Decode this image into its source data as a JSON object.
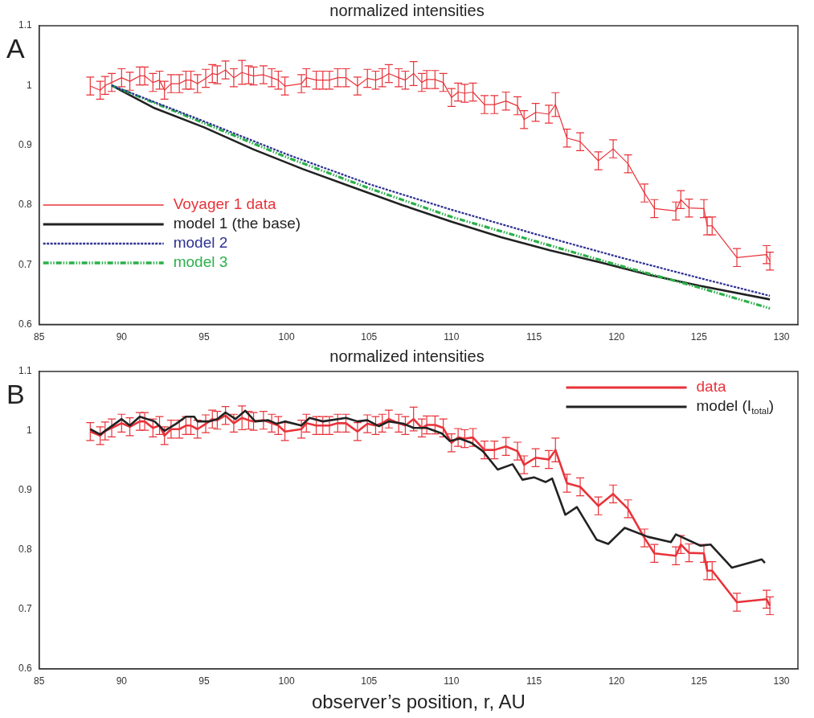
{
  "chart_data": [
    {
      "type": "line",
      "title": "normalized intensities",
      "annotations": [
        "A"
      ],
      "legend": "left",
      "grid": false,
      "marker": "none",
      "xlim": [
        85,
        131
      ],
      "xticks": [
        85,
        90,
        95,
        100,
        105,
        110,
        115,
        120,
        125,
        130
      ],
      "ylim": [
        0.6,
        1.1
      ],
      "yticks": [
        0.6,
        0.7,
        0.8,
        0.9,
        1,
        1.1
      ],
      "series": [
        {
          "name": "Voyager 1 data",
          "color": "#e8333a",
          "line_style": "solid",
          "x": [
            88.1,
            88.7,
            89.0,
            89.4,
            90.0,
            90.5,
            91.1,
            91.4,
            91.9,
            92.3,
            92.6,
            93.0,
            93.5,
            93.9,
            94.2,
            94.6,
            95.1,
            95.5,
            95.8,
            96.3,
            96.8,
            97.3,
            97.7,
            98.0,
            98.6,
            99.1,
            99.5,
            99.9,
            100.9,
            101.2,
            101.8,
            102.2,
            102.6,
            103.1,
            103.6,
            104.3,
            104.9,
            105.4,
            105.8,
            106.2,
            106.8,
            107.2,
            107.7,
            108.2,
            108.5,
            109.0,
            109.5,
            110.0,
            110.4,
            110.8,
            111.3,
            112.0,
            112.6,
            113.3,
            114.0,
            114.4,
            115.1,
            115.9,
            116.3,
            117.0,
            117.8,
            118.9,
            119.8,
            120.7,
            121.7,
            122.3,
            123.6,
            123.9,
            124.4,
            125.3,
            125.5,
            125.8,
            127.3,
            129.1,
            129.3
          ],
          "values": [
            0.999,
            0.992,
            1.0,
            1.005,
            1.013,
            1.007,
            1.016,
            1.016,
            1.005,
            1.009,
            0.992,
            1.003,
            1.003,
            1.009,
            1.009,
            1.003,
            1.012,
            1.02,
            1.018,
            1.026,
            1.013,
            1.022,
            1.018,
            1.016,
            1.018,
            1.013,
            1.009,
            0.999,
            1.003,
            1.013,
            1.009,
            1.009,
            1.009,
            1.013,
            1.013,
            0.999,
            1.012,
            1.009,
            1.013,
            1.02,
            1.013,
            1.009,
            1.02,
            1.005,
            1.01,
            1.01,
            1.005,
            0.98,
            0.989,
            0.987,
            0.989,
            0.968,
            0.968,
            0.974,
            0.966,
            0.943,
            0.955,
            0.952,
            0.968,
            0.912,
            0.906,
            0.874,
            0.894,
            0.869,
            0.82,
            0.794,
            0.79,
            0.809,
            0.795,
            0.794,
            0.765,
            0.765,
            0.712,
            0.717,
            0.706
          ],
          "errors": [
            0.015,
            0.015,
            0.015,
            0.015,
            0.015,
            0.015,
            0.015,
            0.015,
            0.015,
            0.015,
            0.015,
            0.015,
            0.015,
            0.015,
            0.015,
            0.015,
            0.015,
            0.015,
            0.015,
            0.015,
            0.015,
            0.02,
            0.015,
            0.015,
            0.015,
            0.015,
            0.015,
            0.015,
            0.015,
            0.015,
            0.015,
            0.015,
            0.015,
            0.015,
            0.015,
            0.015,
            0.015,
            0.015,
            0.015,
            0.015,
            0.015,
            0.015,
            0.02,
            0.015,
            0.015,
            0.015,
            0.015,
            0.015,
            0.015,
            0.015,
            0.015,
            0.015,
            0.015,
            0.015,
            0.015,
            0.015,
            0.015,
            0.015,
            0.02,
            0.015,
            0.015,
            0.015,
            0.015,
            0.015,
            0.015,
            0.015,
            0.015,
            0.015,
            0.015,
            0.015,
            0.015,
            0.015,
            0.015,
            0.015,
            0.015
          ]
        },
        {
          "name": "model 1 (the base)",
          "color": "#222222",
          "line_style": "solid",
          "x": [
            89.4,
            92,
            95,
            98,
            101,
            104,
            107,
            110,
            113,
            116,
            119,
            122,
            125,
            129.3
          ],
          "values": [
            1.0,
            0.962,
            0.93,
            0.893,
            0.86,
            0.83,
            0.8,
            0.772,
            0.746,
            0.724,
            0.704,
            0.683,
            0.665,
            0.642
          ]
        },
        {
          "name": "model 2",
          "color": "#2e3192",
          "line_style": "dotted",
          "x": [
            89.4,
            95,
            100,
            105,
            110,
            115,
            120,
            125,
            129.3
          ],
          "values": [
            1.0,
            0.94,
            0.885,
            0.835,
            0.792,
            0.752,
            0.714,
            0.678,
            0.648
          ]
        },
        {
          "name": "model 3",
          "color": "#2bb04a",
          "line_style": "dashed",
          "x": [
            89.4,
            95,
            100,
            105,
            110,
            115,
            120,
            125,
            129.3
          ],
          "values": [
            1.0,
            0.937,
            0.88,
            0.828,
            0.78,
            0.74,
            0.7,
            0.662,
            0.627
          ]
        }
      ]
    },
    {
      "type": "line",
      "title": "normalized intensities",
      "xlabel": "observer’s position, r, AU",
      "annotations": [
        "B"
      ],
      "legend": "top right",
      "grid": false,
      "marker": "none",
      "xlim": [
        85,
        131
      ],
      "xticks": [
        85,
        90,
        95,
        100,
        105,
        110,
        115,
        120,
        125,
        130
      ],
      "ylim": [
        0.6,
        1.1
      ],
      "yticks": [
        0.6,
        0.7,
        0.8,
        0.9,
        1,
        1.1
      ],
      "series": [
        {
          "name": "data",
          "color": "#e8333a",
          "line_style": "solid",
          "x": [
            88.1,
            88.7,
            89.0,
            89.4,
            90.0,
            90.5,
            91.1,
            91.4,
            91.9,
            92.3,
            92.6,
            93.0,
            93.5,
            93.9,
            94.2,
            94.6,
            95.1,
            95.5,
            95.8,
            96.3,
            96.8,
            97.3,
            97.7,
            98.0,
            98.6,
            99.1,
            99.5,
            99.9,
            100.9,
            101.2,
            101.8,
            102.2,
            102.6,
            103.1,
            103.6,
            104.3,
            104.9,
            105.4,
            105.8,
            106.2,
            106.8,
            107.2,
            107.7,
            108.2,
            108.5,
            109.0,
            109.5,
            110.0,
            110.4,
            110.8,
            111.3,
            112.0,
            112.6,
            113.3,
            114.0,
            114.4,
            115.1,
            115.9,
            116.3,
            117.0,
            117.8,
            118.9,
            119.8,
            120.7,
            121.7,
            122.3,
            123.6,
            123.9,
            124.4,
            125.3,
            125.5,
            125.8,
            127.3,
            129.1,
            129.3
          ],
          "values": [
            0.999,
            0.992,
            1.0,
            1.005,
            1.013,
            1.007,
            1.016,
            1.016,
            1.005,
            1.009,
            0.992,
            1.003,
            1.003,
            1.009,
            1.009,
            1.003,
            1.012,
            1.02,
            1.018,
            1.026,
            1.013,
            1.022,
            1.018,
            1.016,
            1.018,
            1.013,
            1.009,
            0.999,
            1.003,
            1.013,
            1.009,
            1.009,
            1.009,
            1.013,
            1.013,
            0.999,
            1.012,
            1.009,
            1.013,
            1.02,
            1.013,
            1.009,
            1.02,
            1.005,
            1.01,
            1.01,
            1.005,
            0.98,
            0.989,
            0.987,
            0.989,
            0.968,
            0.968,
            0.974,
            0.966,
            0.943,
            0.955,
            0.952,
            0.968,
            0.912,
            0.906,
            0.874,
            0.894,
            0.869,
            0.82,
            0.794,
            0.79,
            0.809,
            0.795,
            0.794,
            0.765,
            0.765,
            0.712,
            0.717,
            0.706
          ],
          "errors": [
            0.015,
            0.015,
            0.015,
            0.015,
            0.015,
            0.015,
            0.015,
            0.015,
            0.015,
            0.015,
            0.015,
            0.015,
            0.015,
            0.015,
            0.015,
            0.015,
            0.015,
            0.015,
            0.015,
            0.015,
            0.015,
            0.02,
            0.015,
            0.015,
            0.015,
            0.015,
            0.015,
            0.015,
            0.015,
            0.015,
            0.015,
            0.015,
            0.015,
            0.015,
            0.015,
            0.015,
            0.015,
            0.015,
            0.015,
            0.015,
            0.015,
            0.015,
            0.02,
            0.015,
            0.015,
            0.015,
            0.015,
            0.015,
            0.015,
            0.015,
            0.015,
            0.015,
            0.015,
            0.015,
            0.015,
            0.015,
            0.015,
            0.015,
            0.02,
            0.015,
            0.015,
            0.015,
            0.015,
            0.015,
            0.015,
            0.015,
            0.015,
            0.015,
            0.015,
            0.015,
            0.015,
            0.015,
            0.015,
            0.015,
            0.015
          ]
        },
        {
          "name": "model (I$_{total}$)",
          "color": "#222222",
          "line_style": "solid",
          "x": [
            88.1,
            88.7,
            90.0,
            90.5,
            91.1,
            92.0,
            92.6,
            93.3,
            93.9,
            94.4,
            94.6,
            95.3,
            95.8,
            96.3,
            96.9,
            97.5,
            98.1,
            98.9,
            99.4,
            99.9,
            100.9,
            101.4,
            102.2,
            103.6,
            104.3,
            104.9,
            105.6,
            106.2,
            107.1,
            107.7,
            108.5,
            109.4,
            109.9,
            110.5,
            111.2,
            111.9,
            112.8,
            113.7,
            114.3,
            115.0,
            115.7,
            116.1,
            116.9,
            117.6,
            118.8,
            119.5,
            120.5,
            121.9,
            123.3,
            123.6,
            125.1,
            125.7,
            127.0,
            128.8,
            129.0
          ],
          "values": [
            1.003,
            0.994,
            1.02,
            1.009,
            1.024,
            1.016,
            1.0,
            1.012,
            1.024,
            1.024,
            1.016,
            1.016,
            1.02,
            1.031,
            1.02,
            1.034,
            1.016,
            1.018,
            1.012,
            1.016,
            1.009,
            1.022,
            1.016,
            1.022,
            1.016,
            1.018,
            1.008,
            1.016,
            1.012,
            1.005,
            1.005,
            0.996,
            0.983,
            0.987,
            0.98,
            0.966,
            0.935,
            0.944,
            0.918,
            0.922,
            0.914,
            0.92,
            0.859,
            0.872,
            0.817,
            0.81,
            0.837,
            0.822,
            0.813,
            0.826,
            0.807,
            0.809,
            0.77,
            0.784,
            0.778
          ]
        }
      ]
    }
  ]
}
